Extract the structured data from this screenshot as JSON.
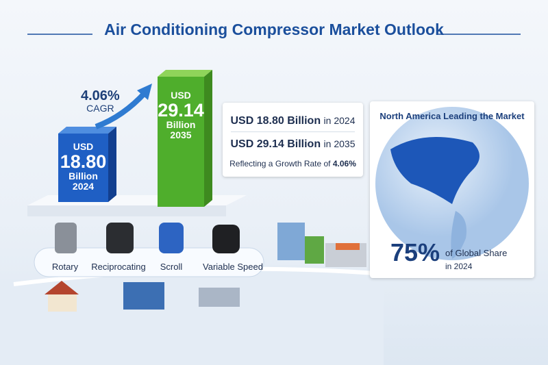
{
  "header": {
    "title": "Air Conditioning Compressor Market Outlook"
  },
  "growth": {
    "rate": "4.06%",
    "label": "CAGR"
  },
  "bars": [
    {
      "currency": "USD",
      "value": "18.80",
      "unit": "Billion",
      "year": "2024"
    },
    {
      "currency": "USD",
      "value": "29.14",
      "unit": "Billion",
      "year": "2035"
    }
  ],
  "summary": {
    "lines": [
      {
        "amount": "USD 18.80 Billion",
        "suffix": "in 2024"
      },
      {
        "amount": "USD 29.14 Billion",
        "suffix": "in 2035"
      }
    ],
    "growth_text": "Reflecting a Growth Rate of",
    "growth_value": "4.06%"
  },
  "types": [
    "Rotary",
    "Reciprocating",
    "Scroll",
    "Variable Speed"
  ],
  "region": {
    "title": "North America Leading the Market",
    "share": "75%",
    "share_label": "of Global Share",
    "year": "in 2024"
  }
}
